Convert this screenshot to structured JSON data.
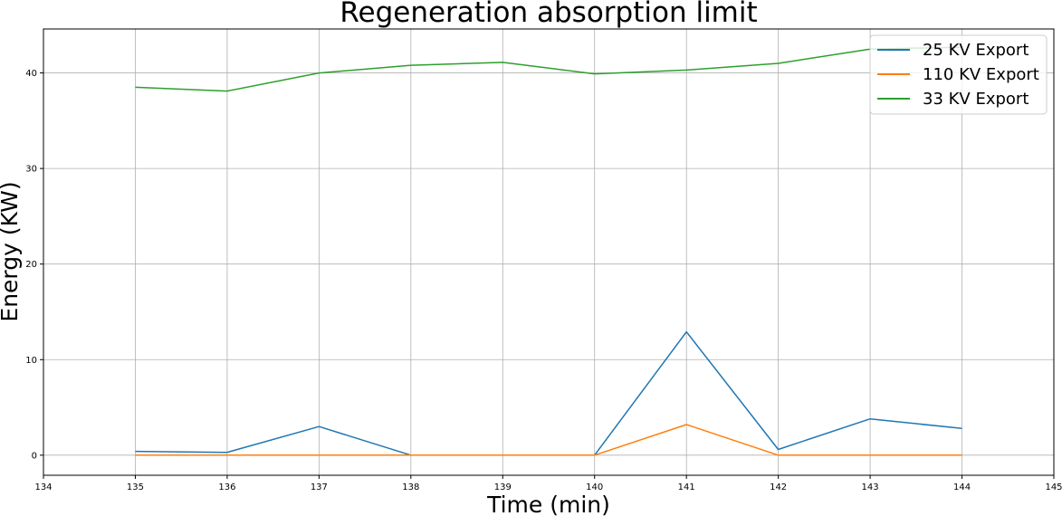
{
  "chart_data": {
    "type": "line",
    "title": "Regeneration absorption limit",
    "xlabel": "Time (min)",
    "ylabel": "Energy (KW)",
    "xlim": [
      134,
      145
    ],
    "ylim": [
      -2.1,
      44.6
    ],
    "xticks": [
      134,
      135,
      136,
      137,
      138,
      139,
      140,
      141,
      142,
      143,
      144,
      145
    ],
    "yticks": [
      0,
      10,
      20,
      30,
      40
    ],
    "grid": true,
    "legend_position": "top-right",
    "x": [
      135,
      136,
      137,
      138,
      139,
      140,
      141,
      142,
      143,
      144
    ],
    "series": [
      {
        "name": "25 KV Export",
        "color": "#1f77b4",
        "values": [
          0.4,
          0.3,
          3.0,
          0.0,
          0.0,
          0.0,
          12.9,
          0.6,
          3.8,
          2.8
        ]
      },
      {
        "name": "110 KV Export",
        "color": "#ff7f0e",
        "values": [
          0.0,
          0.0,
          0.0,
          0.0,
          0.0,
          0.0,
          3.2,
          0.0,
          0.0,
          0.0
        ]
      },
      {
        "name": "33 KV Export",
        "color": "#2ca02c",
        "values": [
          38.5,
          38.1,
          40.0,
          40.8,
          41.1,
          39.9,
          40.3,
          41.0,
          42.5,
          42.7
        ]
      }
    ]
  }
}
